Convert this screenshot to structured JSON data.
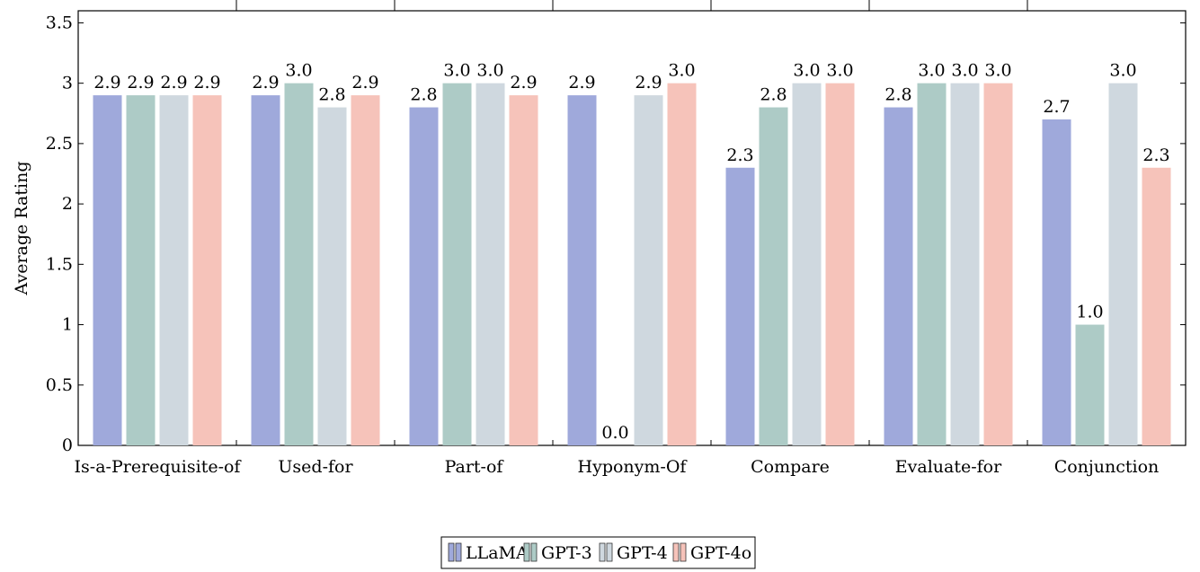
{
  "chart_data": {
    "type": "bar",
    "title": "",
    "xlabel": "",
    "ylabel": "Average Rating",
    "ylim": [
      0,
      3.6
    ],
    "yticks": [
      "0",
      "0.5",
      "1",
      "1.5",
      "2",
      "2.5",
      "3",
      "3.5"
    ],
    "grid": false,
    "legend_position": "bottom-center",
    "categories": [
      "Is-a-Prerequisite-of",
      "Used-for",
      "Part-of",
      "Hyponym-Of",
      "Compare",
      "Evaluate-for",
      "Conjunction"
    ],
    "series": [
      {
        "name": "LLaMA",
        "color": "#9fa9db",
        "values": [
          2.9,
          2.9,
          2.8,
          2.9,
          2.3,
          2.8,
          2.7
        ],
        "labels": [
          "2.9",
          "2.9",
          "2.8",
          "2.9",
          "2.3",
          "2.8",
          "2.7"
        ]
      },
      {
        "name": "GPT-3",
        "color": "#adcbc6",
        "values": [
          2.9,
          3.0,
          3.0,
          0.0,
          2.8,
          3.0,
          1.0
        ],
        "labels": [
          "2.9",
          "3.0",
          "3.0",
          "0.0",
          "2.8",
          "3.0",
          "1.0"
        ]
      },
      {
        "name": "GPT-4",
        "color": "#cfd8df",
        "values": [
          2.9,
          2.8,
          3.0,
          2.9,
          3.0,
          3.0,
          3.0
        ],
        "labels": [
          "2.9",
          "2.8",
          "3.0",
          "2.9",
          "3.0",
          "3.0",
          "3.0"
        ]
      },
      {
        "name": "GPT-4o",
        "color": "#f6c3ba",
        "values": [
          2.9,
          2.9,
          2.9,
          3.0,
          3.0,
          3.0,
          2.3
        ],
        "labels": [
          "2.9",
          "2.9",
          "2.9",
          "3.0",
          "3.0",
          "3.0",
          "2.3"
        ]
      }
    ]
  }
}
